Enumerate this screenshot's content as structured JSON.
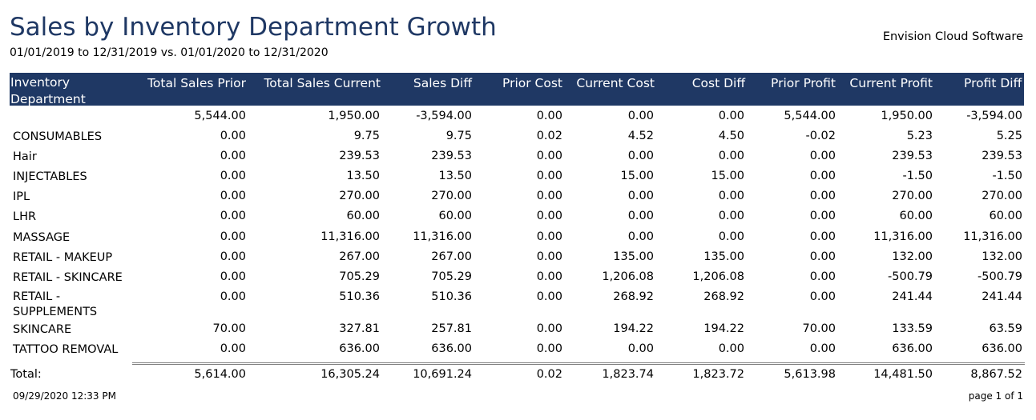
{
  "report": {
    "title": "Sales by Inventory Department Growth",
    "date_range": "01/01/2019 to 12/31/2019  vs.  01/01/2020 to 12/31/2020",
    "company": "Envision Cloud Software"
  },
  "table": {
    "columns": [
      "Inventory Department",
      "Total Sales Prior",
      "Total Sales Current",
      "Sales Diff",
      "Prior Cost",
      "Current Cost",
      "Cost Diff",
      "Prior Profit",
      "Current Profit",
      "Profit Diff"
    ],
    "rows": [
      [
        "",
        "5,544.00",
        "1,950.00",
        "-3,594.00",
        "0.00",
        "0.00",
        "0.00",
        "5,544.00",
        "1,950.00",
        "-3,594.00"
      ],
      [
        "CONSUMABLES",
        "0.00",
        "9.75",
        "9.75",
        "0.02",
        "4.52",
        "4.50",
        "-0.02",
        "5.23",
        "5.25"
      ],
      [
        "Hair",
        "0.00",
        "239.53",
        "239.53",
        "0.00",
        "0.00",
        "0.00",
        "0.00",
        "239.53",
        "239.53"
      ],
      [
        "INJECTABLES",
        "0.00",
        "13.50",
        "13.50",
        "0.00",
        "15.00",
        "15.00",
        "0.00",
        "-1.50",
        "-1.50"
      ],
      [
        "IPL",
        "0.00",
        "270.00",
        "270.00",
        "0.00",
        "0.00",
        "0.00",
        "0.00",
        "270.00",
        "270.00"
      ],
      [
        "LHR",
        "0.00",
        "60.00",
        "60.00",
        "0.00",
        "0.00",
        "0.00",
        "0.00",
        "60.00",
        "60.00"
      ],
      [
        "MASSAGE",
        "0.00",
        "11,316.00",
        "11,316.00",
        "0.00",
        "0.00",
        "0.00",
        "0.00",
        "11,316.00",
        "11,316.00"
      ],
      [
        "RETAIL - MAKEUP",
        "0.00",
        "267.00",
        "267.00",
        "0.00",
        "135.00",
        "135.00",
        "0.00",
        "132.00",
        "132.00"
      ],
      [
        "RETAIL - SKINCARE",
        "0.00",
        "705.29",
        "705.29",
        "0.00",
        "1,206.08",
        "1,206.08",
        "0.00",
        "-500.79",
        "-500.79"
      ],
      [
        "RETAIL - SUPPLEMENTS",
        "0.00",
        "510.36",
        "510.36",
        "0.00",
        "268.92",
        "268.92",
        "0.00",
        "241.44",
        "241.44"
      ],
      [
        "SKINCARE",
        "70.00",
        "327.81",
        "257.81",
        "0.00",
        "194.22",
        "194.22",
        "70.00",
        "133.59",
        "63.59"
      ],
      [
        "TATTOO REMOVAL",
        "0.00",
        "636.00",
        "636.00",
        "0.00",
        "0.00",
        "0.00",
        "0.00",
        "636.00",
        "636.00"
      ]
    ],
    "totals": [
      "Total:",
      "5,614.00",
      "16,305.24",
      "10,691.24",
      "0.02",
      "1,823.74",
      "1,823.72",
      "5,613.98",
      "14,481.50",
      "8,867.52"
    ]
  },
  "footer": {
    "printed_at": "09/29/2020 12:33 PM",
    "page": "page 1 of 1"
  },
  "colors": {
    "header_bg": "#1f3864",
    "title": "#1f3864"
  }
}
